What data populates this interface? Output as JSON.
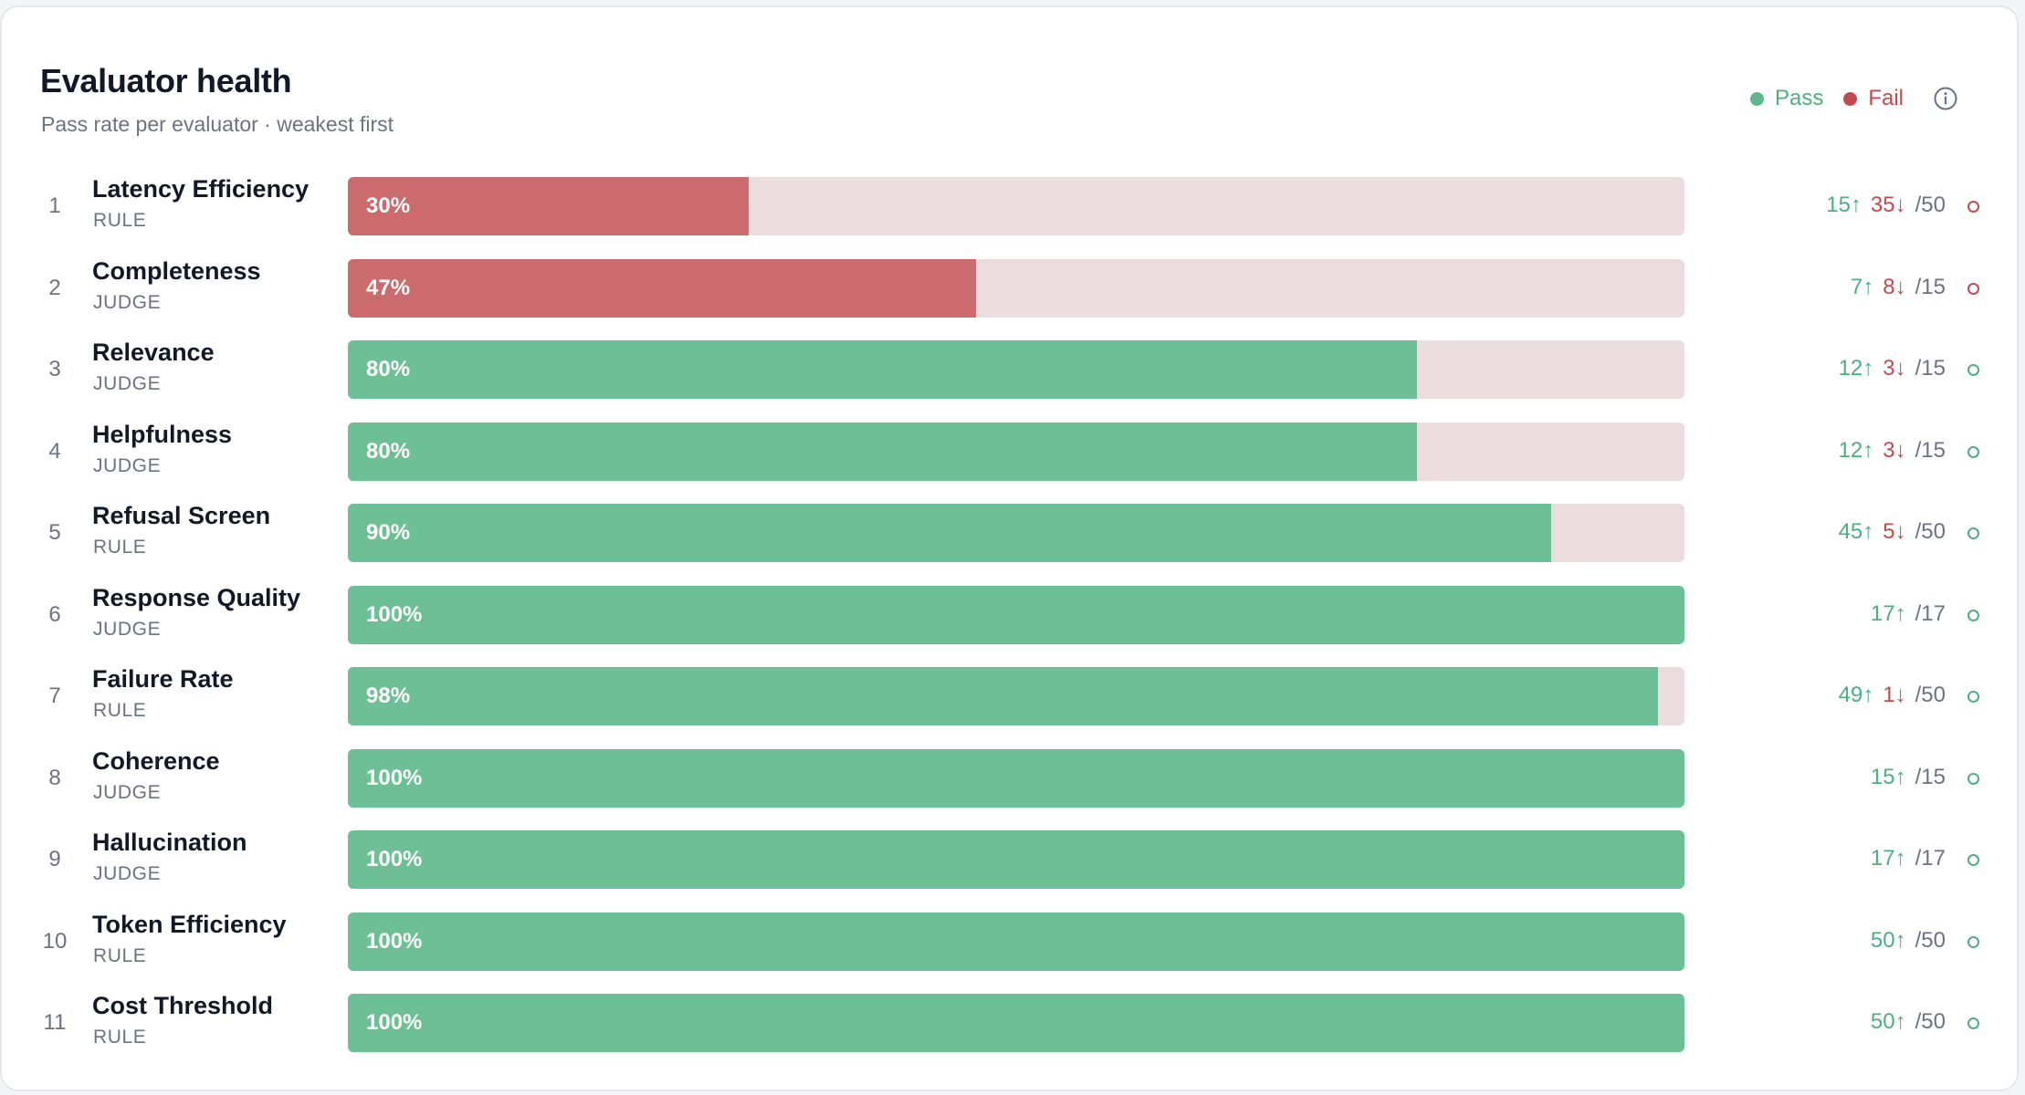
{
  "header": {
    "title": "Evaluator health",
    "subtitle": "Pass rate per evaluator · weakest first"
  },
  "legend": {
    "pass_label": "Pass",
    "fail_label": "Fail",
    "info_icon": "info-icon"
  },
  "colors": {
    "pass": "#6dbf95",
    "fail": "#cb6b6d",
    "track": "#ebdcdd",
    "pass_text": "#4caf7d",
    "fail_text": "#c24a4f"
  },
  "chart_data": {
    "type": "bar",
    "orientation": "horizontal",
    "title": "Evaluator health",
    "subtitle": "Pass rate per evaluator · weakest first",
    "xlim": [
      0,
      100
    ],
    "legend": [
      "Pass",
      "Fail"
    ],
    "legend_position": "top-right",
    "rows": [
      {
        "rank": "1",
        "name": "Latency Efficiency",
        "kind": "RULE",
        "value": 30,
        "label": "30%",
        "pass": "15↑",
        "fail": "35↓",
        "total": "/50",
        "status": "fail"
      },
      {
        "rank": "2",
        "name": "Completeness",
        "kind": "JUDGE",
        "value": 47,
        "label": "47%",
        "pass": "7↑",
        "fail": "8↓",
        "total": "/15",
        "status": "fail"
      },
      {
        "rank": "3",
        "name": "Relevance",
        "kind": "JUDGE",
        "value": 80,
        "label": "80%",
        "pass": "12↑",
        "fail": "3↓",
        "total": "/15",
        "status": "pass"
      },
      {
        "rank": "4",
        "name": "Helpfulness",
        "kind": "JUDGE",
        "value": 80,
        "label": "80%",
        "pass": "12↑",
        "fail": "3↓",
        "total": "/15",
        "status": "pass"
      },
      {
        "rank": "5",
        "name": "Refusal Screen",
        "kind": "RULE",
        "value": 90,
        "label": "90%",
        "pass": "45↑",
        "fail": "5↓",
        "total": "/50",
        "status": "pass"
      },
      {
        "rank": "6",
        "name": "Response Quality",
        "kind": "JUDGE",
        "value": 100,
        "label": "100%",
        "pass": "17↑",
        "fail": "",
        "total": "/17",
        "status": "pass"
      },
      {
        "rank": "7",
        "name": "Failure Rate",
        "kind": "RULE",
        "value": 98,
        "label": "98%",
        "pass": "49↑",
        "fail": "1↓",
        "total": "/50",
        "status": "pass"
      },
      {
        "rank": "8",
        "name": "Coherence",
        "kind": "JUDGE",
        "value": 100,
        "label": "100%",
        "pass": "15↑",
        "fail": "",
        "total": "/15",
        "status": "pass"
      },
      {
        "rank": "9",
        "name": "Hallucination",
        "kind": "JUDGE",
        "value": 100,
        "label": "100%",
        "pass": "17↑",
        "fail": "",
        "total": "/17",
        "status": "pass"
      },
      {
        "rank": "10",
        "name": "Token Efficiency",
        "kind": "RULE",
        "value": 100,
        "label": "100%",
        "pass": "50↑",
        "fail": "",
        "total": "/50",
        "status": "pass"
      },
      {
        "rank": "11",
        "name": "Cost Threshold",
        "kind": "RULE",
        "value": 100,
        "label": "100%",
        "pass": "50↑",
        "fail": "",
        "total": "/50",
        "status": "pass"
      }
    ]
  }
}
